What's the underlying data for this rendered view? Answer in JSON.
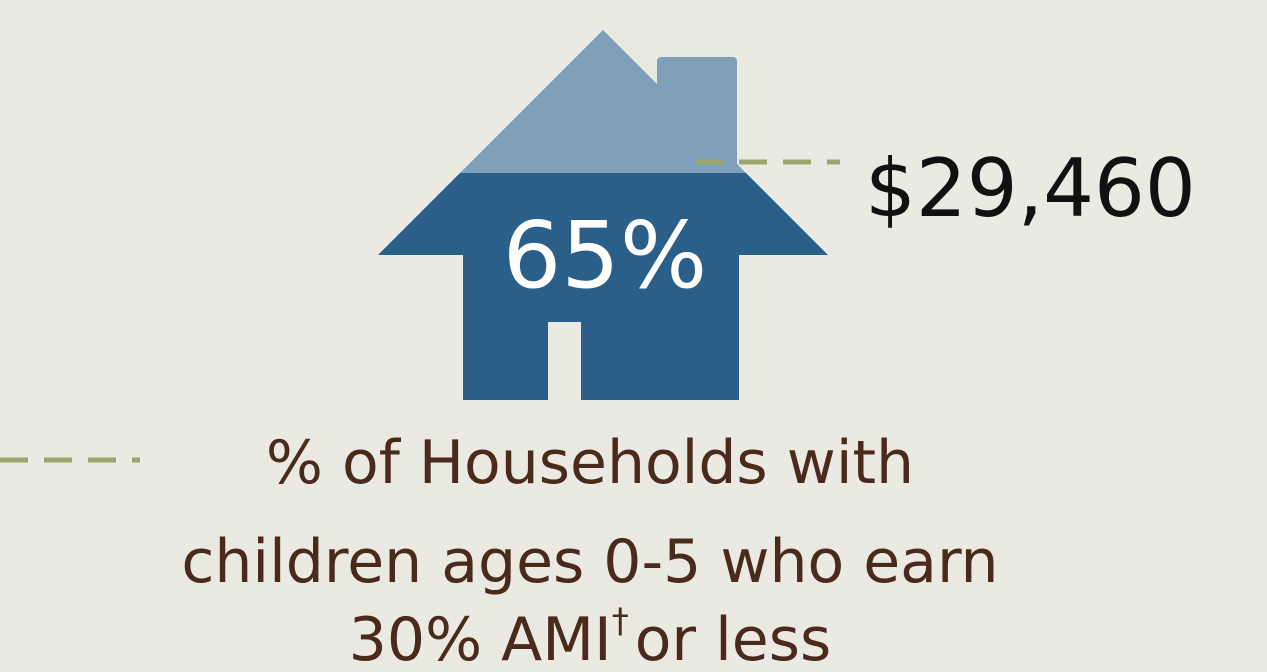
{
  "headline": "65%",
  "income": "$29,460",
  "caption": {
    "line1": "% of Households with",
    "line2": "children ages 0-5 who earn",
    "line3": "30% AMI",
    "footnote_mark": "†",
    "line3_end": "or less"
  }
}
